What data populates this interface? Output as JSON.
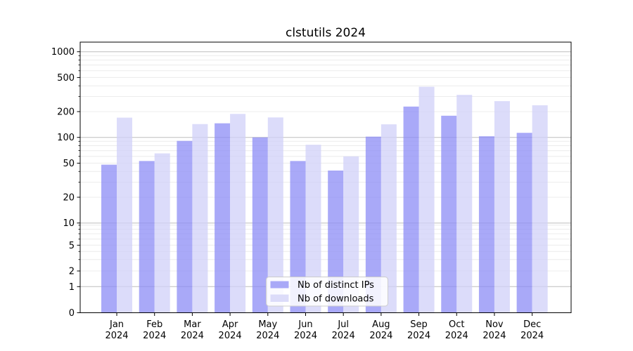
{
  "chart_data": {
    "type": "bar",
    "title": "clstutils 2024",
    "categories": [
      "Jan",
      "Feb",
      "Mar",
      "Apr",
      "May",
      "Jun",
      "Jul",
      "Aug",
      "Sep",
      "Oct",
      "Nov",
      "Dec"
    ],
    "category_year": "2024",
    "series": [
      {
        "name": "Nb of distinct IPs",
        "color": "#8c8cf5",
        "rendered_color": "#a9a9f7",
        "values": [
          48,
          53,
          91,
          146,
          100,
          53,
          41,
          102,
          229,
          179,
          103,
          113
        ]
      },
      {
        "name": "Nb of downloads",
        "color": "#d0d0f8",
        "rendered_color": "#dcdcf9",
        "values": [
          170,
          65,
          143,
          188,
          171,
          82,
          60,
          142,
          390,
          314,
          265,
          237
        ]
      }
    ],
    "y_ticks": [
      0,
      1,
      2,
      5,
      10,
      20,
      50,
      100,
      200,
      500,
      1000
    ],
    "y_minor_ticks": [
      3,
      4,
      6,
      7,
      8,
      9,
      30,
      40,
      60,
      70,
      80,
      90,
      300,
      400,
      600,
      700,
      800,
      900
    ],
    "y_scale": "symlog",
    "ylim": [
      0,
      1400
    ],
    "grid": true,
    "legend_position": "bottom-center",
    "colors": {
      "major_gridline": "#bdbdbd",
      "minor_gridline": "#ececec",
      "spine": "#000000",
      "legend_border": "#cccccc",
      "legend_background": "#ffffff"
    }
  }
}
